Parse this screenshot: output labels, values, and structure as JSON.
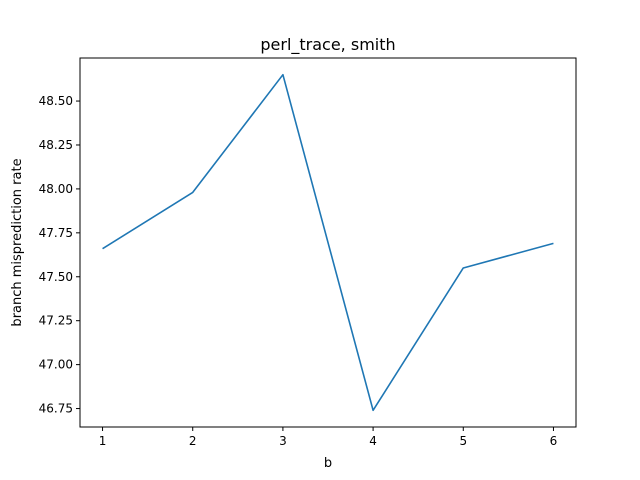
{
  "chart_data": {
    "type": "line",
    "title": "perl_trace, smith",
    "xlabel": "b",
    "ylabel": "branch misprediction rate",
    "x": [
      1,
      2,
      3,
      4,
      5,
      6
    ],
    "series": [
      {
        "values": [
          47.66,
          47.98,
          48.65,
          46.74,
          47.55,
          47.69
        ],
        "color": "#1f77b4"
      }
    ],
    "xlim": [
      0.75,
      6.25
    ],
    "ylim": [
      46.645,
      48.745
    ],
    "xticks": [
      1,
      2,
      3,
      4,
      5,
      6
    ],
    "xtick_labels": [
      "1",
      "2",
      "3",
      "4",
      "5",
      "6"
    ],
    "yticks": [
      46.75,
      47.0,
      47.25,
      47.5,
      47.75,
      48.0,
      48.25,
      48.5
    ],
    "ytick_labels": [
      "46.75",
      "47.00",
      "47.25",
      "47.50",
      "47.75",
      "48.00",
      "48.25",
      "48.50"
    ],
    "grid": false,
    "legend": false
  }
}
